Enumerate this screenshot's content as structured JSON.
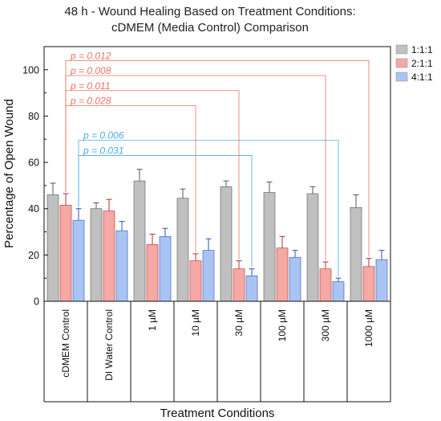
{
  "chart_data": {
    "type": "bar",
    "title_line1": "48 h - Wound Healing Based on Treatment Conditions:",
    "title_line2": "cDMEM (Media Control) Comparison",
    "xlabel": "Treatment Conditions",
    "ylabel": "Percentage of Open Wound",
    "ylim": [
      0,
      110
    ],
    "yticks": [
      0,
      20,
      40,
      60,
      80,
      100
    ],
    "categories": [
      "cDMEM Control",
      "DI Water Control",
      "1 µM",
      "10 µM",
      "30 µM",
      "100 µM",
      "300 µM",
      "1000 µM"
    ],
    "series": [
      {
        "name": "1:1:1",
        "color": "#c0c0c0",
        "edge": "#555555",
        "values": [
          46,
          40,
          52,
          44.5,
          49.5,
          47,
          46.5,
          40.5
        ],
        "errors": [
          5,
          2.5,
          5,
          4,
          2.5,
          4.5,
          3,
          5.5
        ]
      },
      {
        "name": "2:1:1",
        "color": "#f5a8a4",
        "edge": "#b03030",
        "values": [
          41.5,
          39,
          24.5,
          17.5,
          14,
          23,
          14,
          15
        ],
        "errors": [
          5,
          5,
          4.5,
          3,
          3.5,
          5,
          3,
          3.5
        ]
      },
      {
        "name": "4:1:1",
        "color": "#a9c4f2",
        "edge": "#2a52be",
        "values": [
          35,
          30.5,
          28,
          22,
          11,
          19,
          8.5,
          18
        ],
        "errors": [
          5,
          4,
          3.5,
          5,
          3,
          3,
          1.5,
          4
        ]
      }
    ],
    "comparisons": [
      {
        "label": "p = 0.012",
        "color": "#e8735f",
        "from_category": 0,
        "from_series": 1,
        "to_category": 7,
        "to_series": 1,
        "y": 104
      },
      {
        "label": "p = 0.008",
        "color": "#e8735f",
        "from_category": 0,
        "from_series": 1,
        "to_category": 6,
        "to_series": 1,
        "y": 97.5
      },
      {
        "label": "p = 0.011",
        "color": "#e8735f",
        "from_category": 0,
        "from_series": 1,
        "to_category": 4,
        "to_series": 1,
        "y": 91
      },
      {
        "label": "p = 0.028",
        "color": "#e8735f",
        "from_category": 0,
        "from_series": 1,
        "to_category": 3,
        "to_series": 1,
        "y": 84.5
      },
      {
        "label": "p = 0.006",
        "color": "#4aa8e8",
        "from_category": 0,
        "from_series": 2,
        "to_category": 6,
        "to_series": 2,
        "y": 69.5
      },
      {
        "label": "p = 0.031",
        "color": "#4aa8e8",
        "from_category": 0,
        "from_series": 2,
        "to_category": 4,
        "to_series": 2,
        "y": 63
      }
    ],
    "grid": false,
    "legend_position": "top-right"
  }
}
